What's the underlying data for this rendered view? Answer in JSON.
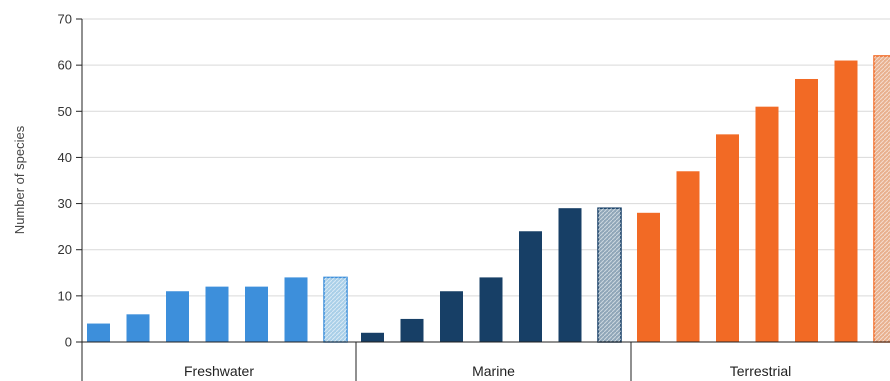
{
  "chart_data": {
    "type": "bar",
    "ylabel": "Number of species",
    "ylim": [
      0,
      70
    ],
    "yticks": [
      0,
      10,
      20,
      30,
      40,
      50,
      60,
      70
    ],
    "grid": true,
    "groups": [
      {
        "name": "Freshwater",
        "color": "#3d8fdb",
        "last_bar_color": "#a9cfe8",
        "last_bar_hatched": true,
        "values": [
          4,
          6,
          11,
          12,
          12,
          14,
          14
        ]
      },
      {
        "name": "Marine",
        "color": "#173f66",
        "last_bar_color": "#8fa6b8",
        "last_bar_hatched": true,
        "values": [
          2,
          5,
          11,
          14,
          24,
          29,
          29
        ]
      },
      {
        "name": "Terrestrial",
        "color": "#f26a25",
        "last_bar_color": "#e8b08e",
        "last_bar_hatched": true,
        "values": [
          28,
          37,
          45,
          51,
          57,
          61,
          62
        ]
      }
    ]
  }
}
